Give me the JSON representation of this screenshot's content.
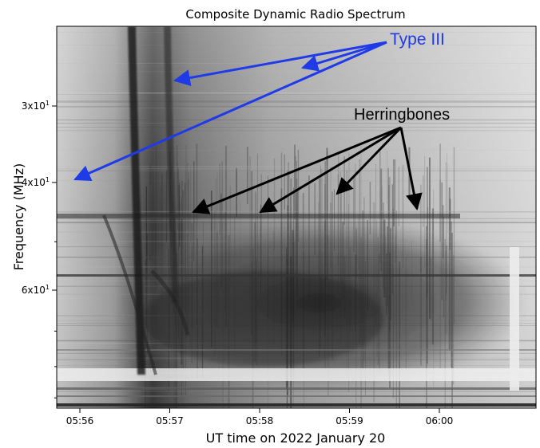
{
  "chart_data": {
    "type": "heatmap",
    "title": "Composite Dynamic Radio Spectrum",
    "xlabel": "UT time on 2022 January 20",
    "ylabel": "Frequency (MHz)",
    "x_ticks": [
      "05:56",
      "05:57",
      "05:58",
      "05:59",
      "06:00"
    ],
    "y_ticks": [
      {
        "label": "3x10",
        "exp": "1",
        "value": 30
      },
      {
        "label": "4x10",
        "exp": "1",
        "value": 40
      },
      {
        "label": "6x10",
        "exp": "1",
        "value": 60
      }
    ],
    "y_scale": "log",
    "y_inverted": true,
    "colormap": "gray",
    "annotations": [
      {
        "text": "Type III",
        "color": "#1f3be8"
      },
      {
        "text": "Herringbones",
        "color": "#000000"
      }
    ]
  }
}
